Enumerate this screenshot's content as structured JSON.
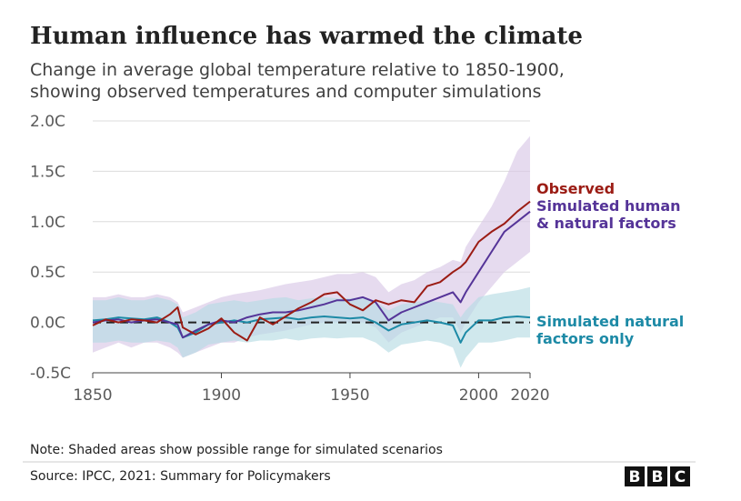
{
  "title": "Human influence has warmed the climate",
  "subtitle": [
    "Change in average global temperature relative to 1850-1900,",
    "showing observed temperatures and computer simulations"
  ],
  "note": "Note: Shaded areas show possible range for simulated scenarios",
  "source": "Source: IPCC, 2021: Summary for Policymakers",
  "logo": "BBC",
  "colors": {
    "observed": "#9b1c14",
    "human_natural": "#553498",
    "natural": "#1d8aa6",
    "human_band": "#d8c8e6",
    "natural_band": "#b7dbe4",
    "grid": "#dcdcdc",
    "zero_line": "#222222"
  },
  "chart_data": {
    "type": "line",
    "title": "Human influence has warmed the climate",
    "xlabel": "",
    "ylabel": "",
    "xlim": [
      1850,
      2020
    ],
    "ylim": [
      -0.5,
      2.0
    ],
    "x_ticks": [
      1850,
      1900,
      1950,
      2000,
      2020
    ],
    "x_tick_labels": [
      "1850",
      "1900",
      "1950",
      "2000",
      "2020"
    ],
    "y_ticks": [
      -0.5,
      0.0,
      0.5,
      1.0,
      1.5,
      2.0
    ],
    "y_tick_labels": [
      "-0.5C",
      "0.0C",
      "0.5C",
      "1.0C",
      "1.5C",
      "2.0C"
    ],
    "grid": "horizontal",
    "zero_line": "dashed",
    "x": [
      1850,
      1855,
      1860,
      1865,
      1870,
      1875,
      1880,
      1883,
      1885,
      1890,
      1895,
      1900,
      1905,
      1910,
      1915,
      1920,
      1925,
      1930,
      1935,
      1940,
      1945,
      1950,
      1955,
      1960,
      1965,
      1970,
      1975,
      1980,
      1985,
      1990,
      1993,
      1995,
      2000,
      2005,
      2010,
      2015,
      2020
    ],
    "series": [
      {
        "name": "Observed",
        "values": [
          -0.03,
          0.03,
          0.0,
          0.03,
          0.02,
          0.0,
          0.08,
          0.15,
          -0.05,
          -0.12,
          -0.06,
          0.04,
          -0.1,
          -0.18,
          0.05,
          -0.02,
          0.06,
          0.14,
          0.2,
          0.28,
          0.3,
          0.18,
          0.12,
          0.22,
          0.18,
          0.22,
          0.2,
          0.36,
          0.4,
          0.5,
          0.55,
          0.6,
          0.8,
          0.9,
          0.98,
          1.1,
          1.2
        ]
      },
      {
        "name": "Simulated human & natural factors",
        "values": [
          0.0,
          0.02,
          0.03,
          0.0,
          0.02,
          0.03,
          0.0,
          -0.02,
          -0.15,
          -0.08,
          -0.02,
          0.02,
          0.0,
          0.05,
          0.08,
          0.1,
          0.1,
          0.12,
          0.15,
          0.18,
          0.22,
          0.22,
          0.25,
          0.2,
          0.02,
          0.1,
          0.15,
          0.2,
          0.25,
          0.3,
          0.2,
          0.3,
          0.5,
          0.7,
          0.9,
          1.0,
          1.1
        ]
      },
      {
        "name": "Simulated natural factors only",
        "values": [
          0.02,
          0.03,
          0.05,
          0.04,
          0.03,
          0.05,
          0.0,
          -0.05,
          -0.15,
          -0.1,
          -0.02,
          0.0,
          0.02,
          0.0,
          0.03,
          0.04,
          0.05,
          0.03,
          0.05,
          0.06,
          0.05,
          0.04,
          0.05,
          0.0,
          -0.08,
          -0.02,
          0.0,
          0.02,
          0.0,
          -0.03,
          -0.2,
          -0.1,
          0.02,
          0.02,
          0.05,
          0.06,
          0.05
        ]
      }
    ],
    "bands": [
      {
        "name": "Simulated human & natural factors range",
        "lower": [
          -0.3,
          -0.25,
          -0.2,
          -0.25,
          -0.2,
          -0.2,
          -0.25,
          -0.3,
          -0.35,
          -0.3,
          -0.25,
          -0.2,
          -0.2,
          -0.15,
          -0.12,
          -0.1,
          -0.08,
          -0.05,
          -0.02,
          0.0,
          0.0,
          0.0,
          0.0,
          -0.05,
          -0.2,
          -0.1,
          -0.05,
          0.0,
          0.05,
          0.05,
          -0.1,
          0.0,
          0.2,
          0.35,
          0.5,
          0.6,
          0.7
        ],
        "upper": [
          0.25,
          0.25,
          0.28,
          0.25,
          0.25,
          0.28,
          0.25,
          0.2,
          0.1,
          0.15,
          0.2,
          0.25,
          0.28,
          0.3,
          0.32,
          0.35,
          0.38,
          0.4,
          0.42,
          0.45,
          0.48,
          0.48,
          0.5,
          0.45,
          0.3,
          0.38,
          0.42,
          0.5,
          0.55,
          0.62,
          0.6,
          0.75,
          0.95,
          1.15,
          1.4,
          1.7,
          1.85
        ]
      },
      {
        "name": "Simulated natural factors only range",
        "lower": [
          -0.2,
          -0.2,
          -0.18,
          -0.2,
          -0.2,
          -0.18,
          -0.2,
          -0.25,
          -0.35,
          -0.3,
          -0.22,
          -0.2,
          -0.18,
          -0.2,
          -0.18,
          -0.18,
          -0.16,
          -0.18,
          -0.16,
          -0.15,
          -0.16,
          -0.15,
          -0.15,
          -0.2,
          -0.3,
          -0.22,
          -0.2,
          -0.18,
          -0.2,
          -0.25,
          -0.45,
          -0.35,
          -0.2,
          -0.2,
          -0.18,
          -0.15,
          -0.15
        ],
        "upper": [
          0.22,
          0.22,
          0.25,
          0.22,
          0.22,
          0.25,
          0.22,
          0.18,
          0.05,
          0.1,
          0.18,
          0.2,
          0.22,
          0.2,
          0.22,
          0.24,
          0.25,
          0.22,
          0.24,
          0.25,
          0.24,
          0.24,
          0.25,
          0.2,
          0.12,
          0.18,
          0.2,
          0.22,
          0.2,
          0.18,
          0.05,
          0.12,
          0.25,
          0.28,
          0.3,
          0.32,
          0.35
        ]
      }
    ],
    "labels": [
      {
        "series": 0,
        "lines": [
          "Observed"
        ]
      },
      {
        "series": 1,
        "lines": [
          "Simulated human",
          "& natural factors"
        ]
      },
      {
        "series": 2,
        "lines": [
          "Simulated natural",
          "factors only"
        ]
      }
    ]
  }
}
